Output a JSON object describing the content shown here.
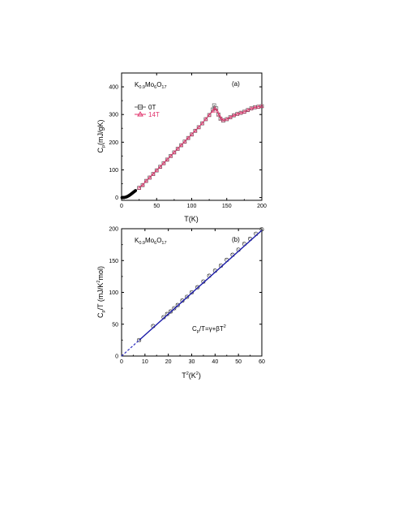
{
  "chart_data": [
    {
      "type": "line",
      "panel_label": "(a)",
      "sample_label": {
        "main": [
          "K",
          "Mo",
          "O"
        ],
        "subs": [
          "0.9",
          "6",
          "17"
        ]
      },
      "xlabel": "T(K)",
      "ylabel": {
        "main": "C",
        "sub": "p",
        "rest": "(mJ/gK)"
      },
      "xlim": [
        0,
        200
      ],
      "ylim": [
        -10,
        450
      ],
      "xticks": [
        "0",
        "50",
        "100",
        "150",
        "200"
      ],
      "yticks": [
        "0",
        "100",
        "200",
        "300",
        "400"
      ],
      "colors": {
        "0T": "#606060",
        "14T": "#e0306a",
        "filled": "#000000"
      },
      "legend": [
        "0T",
        "14T"
      ],
      "series": [
        {
          "name": "0T",
          "marker": "square",
          "x": [
            25,
            30,
            35,
            40,
            45,
            50,
            55,
            60,
            65,
            70,
            75,
            80,
            85,
            90,
            95,
            100,
            105,
            110,
            115,
            120,
            125,
            130,
            132,
            135,
            138,
            141,
            145,
            150,
            155,
            160,
            165,
            170,
            175,
            180,
            185,
            190,
            195,
            200
          ],
          "y": [
            35,
            45,
            60,
            72,
            85,
            98,
            111,
            124,
            137,
            150,
            163,
            176,
            189,
            202,
            215,
            228,
            241,
            254,
            268,
            283,
            298,
            318,
            333,
            322,
            300,
            285,
            278,
            283,
            290,
            297,
            302,
            306,
            310,
            316,
            322,
            326,
            328,
            330
          ]
        },
        {
          "name": "14T",
          "marker": "triangle",
          "x": [
            25,
            30,
            35,
            40,
            45,
            50,
            55,
            60,
            65,
            70,
            75,
            80,
            85,
            90,
            95,
            100,
            105,
            110,
            115,
            120,
            125,
            130,
            133,
            136,
            139,
            142,
            145,
            150,
            155,
            160,
            165,
            170,
            175,
            180,
            185,
            190,
            195,
            200
          ],
          "y": [
            35,
            45,
            60,
            72,
            85,
            98,
            111,
            124,
            137,
            150,
            163,
            176,
            189,
            202,
            215,
            228,
            241,
            254,
            268,
            283,
            298,
            312,
            322,
            313,
            298,
            285,
            279,
            283,
            290,
            297,
            302,
            306,
            310,
            316,
            322,
            326,
            328,
            330
          ]
        },
        {
          "name": "",
          "marker": "filled-circle",
          "x": [
            0.5,
            1,
            1.5,
            2,
            2.5,
            3,
            3.5,
            4,
            4.5,
            5,
            5.5,
            6,
            6.5,
            7,
            7.5,
            8,
            8.5,
            9,
            9.5,
            10,
            10.5,
            11,
            11.5,
            12,
            12.5,
            13,
            13.5,
            14,
            14.5,
            15,
            15.5,
            16,
            16.5,
            17,
            17.5,
            18,
            18.5,
            19,
            19.5,
            20
          ],
          "y": [
            0,
            0,
            0,
            0,
            0,
            0,
            0.3,
            0.5,
            0.7,
            1,
            1.3,
            1.7,
            2.1,
            2.6,
            3.1,
            3.7,
            4.3,
            4.9,
            5.6,
            6.4,
            7.2,
            8,
            8.8,
            9.7,
            10.6,
            11.6,
            12.5,
            13.5,
            14.5,
            15.5,
            16.5,
            17.5,
            18.5,
            19.5,
            20.5,
            21.5,
            22.5,
            23.5,
            24.5,
            25.5
          ]
        }
      ]
    },
    {
      "type": "line",
      "panel_label": "(b)",
      "sample_label": {
        "main": [
          "K",
          "Mo",
          "O"
        ],
        "subs": [
          "0.9",
          "6",
          "17"
        ]
      },
      "xlabel": {
        "main": "T",
        "sup": "2",
        "rest": "(K",
        "sup2": "2",
        "end": ")"
      },
      "ylabel": {
        "main": "C",
        "sub": "p",
        "rest": "/T (mJ/K",
        "sup": "2",
        "end": "mol)"
      },
      "xlim": [
        0,
        60
      ],
      "ylim": [
        0,
        200
      ],
      "xticks": [
        "0",
        "10",
        "20",
        "30",
        "40",
        "50",
        "60"
      ],
      "yticks": [
        "0",
        "50",
        "100",
        "150",
        "200"
      ],
      "equation": "Cₚ/T=γ+βT²",
      "equation_parts": {
        "main": "C",
        "sub": "p",
        "rest": "/T=γ+βT",
        "sup": "2"
      },
      "colors": {
        "data": "#303030",
        "fit": "#1a1aa8",
        "dashed": "#3030c0"
      },
      "series": [
        {
          "name": "",
          "marker": "circle",
          "x": [
            7.5,
            13.5,
            18,
            19.5,
            21,
            22.5,
            24,
            26,
            28,
            30,
            32.5,
            35,
            37.5,
            40,
            42.5,
            45,
            47.5,
            50,
            52.5,
            55,
            57.5,
            60
          ],
          "y": [
            25,
            47,
            61,
            66,
            70,
            75,
            80,
            87,
            93,
            100,
            108,
            117,
            126,
            134,
            142,
            151,
            159,
            167,
            176,
            184,
            192,
            199
          ]
        },
        {
          "name": "",
          "marker": "line",
          "x": [
            7.5,
            60
          ],
          "y": [
            24.8,
            197.5
          ]
        },
        {
          "name": "",
          "marker": "dashed",
          "x": [
            0,
            7.5
          ],
          "y": [
            0,
            24.8
          ]
        }
      ]
    }
  ]
}
